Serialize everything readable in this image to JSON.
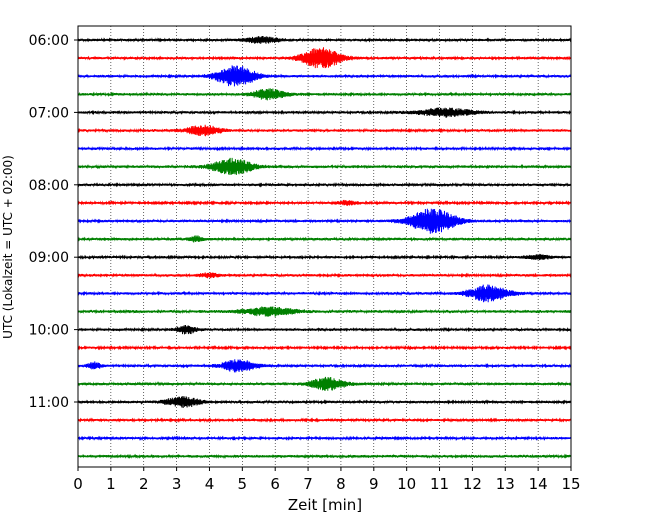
{
  "chart_data": {
    "type": "line",
    "xlabel": "Zeit  [min]",
    "ylabel": "UTC (Lokalzeit = UTC + 02:00)",
    "xlim": [
      0,
      15
    ],
    "x_ticks": [
      0,
      1,
      2,
      3,
      4,
      5,
      6,
      7,
      8,
      9,
      10,
      11,
      12,
      13,
      14,
      15
    ],
    "y_tick_labels": [
      "06:00",
      "07:00",
      "08:00",
      "09:00",
      "10:00",
      "11:00"
    ],
    "grid": "vertical dotted lines at every minute",
    "traces_per_hour": 4,
    "trace_colors": [
      "#000000",
      "#ff0000",
      "#0000ff",
      "#008000"
    ],
    "series": [
      {
        "start": "06:00",
        "color": "#000000",
        "noise": 1.5,
        "events": [
          {
            "t": 5.6,
            "amp": 3,
            "w": 0.5
          }
        ]
      },
      {
        "start": "06:15",
        "color": "#ff0000",
        "noise": 1.5,
        "events": [
          {
            "t": 7.4,
            "amp": 10,
            "w": 0.6
          }
        ]
      },
      {
        "start": "06:30",
        "color": "#0000ff",
        "noise": 1.5,
        "events": [
          {
            "t": 4.8,
            "amp": 10,
            "w": 0.6
          }
        ]
      },
      {
        "start": "06:45",
        "color": "#008000",
        "noise": 1.5,
        "events": [
          {
            "t": 5.8,
            "amp": 5,
            "w": 0.5
          }
        ]
      },
      {
        "start": "07:00",
        "color": "#000000",
        "noise": 1.5,
        "events": [
          {
            "t": 11.2,
            "amp": 4,
            "w": 0.8
          }
        ]
      },
      {
        "start": "07:15",
        "color": "#ff0000",
        "noise": 1.5,
        "events": [
          {
            "t": 3.8,
            "amp": 5,
            "w": 0.5
          }
        ]
      },
      {
        "start": "07:30",
        "color": "#0000ff",
        "noise": 1.4,
        "events": []
      },
      {
        "start": "07:45",
        "color": "#008000",
        "noise": 1.6,
        "events": [
          {
            "t": 4.7,
            "amp": 8,
            "w": 0.6
          }
        ]
      },
      {
        "start": "08:00",
        "color": "#000000",
        "noise": 1.5,
        "events": []
      },
      {
        "start": "08:15",
        "color": "#ff0000",
        "noise": 1.3,
        "events": [
          {
            "t": 8.2,
            "amp": 2,
            "w": 0.3
          }
        ]
      },
      {
        "start": "08:30",
        "color": "#0000ff",
        "noise": 1.5,
        "events": [
          {
            "t": 10.8,
            "amp": 12,
            "w": 0.7
          }
        ]
      },
      {
        "start": "08:45",
        "color": "#008000",
        "noise": 1.6,
        "events": [
          {
            "t": 3.6,
            "amp": 2.5,
            "w": 0.2
          }
        ]
      },
      {
        "start": "09:00",
        "color": "#000000",
        "noise": 1.4,
        "events": [
          {
            "t": 14.0,
            "amp": 2,
            "w": 0.4
          }
        ]
      },
      {
        "start": "09:15",
        "color": "#ff0000",
        "noise": 1.5,
        "events": [
          {
            "t": 4.0,
            "amp": 2,
            "w": 0.3
          }
        ]
      },
      {
        "start": "09:30",
        "color": "#0000ff",
        "noise": 1.5,
        "events": [
          {
            "t": 12.5,
            "amp": 8,
            "w": 0.6
          }
        ]
      },
      {
        "start": "09:45",
        "color": "#008000",
        "noise": 1.6,
        "events": [
          {
            "t": 5.8,
            "amp": 4,
            "w": 0.8
          }
        ]
      },
      {
        "start": "10:00",
        "color": "#000000",
        "noise": 1.5,
        "events": [
          {
            "t": 3.3,
            "amp": 4,
            "w": 0.3
          }
        ]
      },
      {
        "start": "10:15",
        "color": "#ff0000",
        "noise": 1.3,
        "events": []
      },
      {
        "start": "10:30",
        "color": "#0000ff",
        "noise": 1.5,
        "events": [
          {
            "t": 4.9,
            "amp": 6,
            "w": 0.5
          },
          {
            "t": 0.5,
            "amp": 3,
            "w": 0.2
          }
        ]
      },
      {
        "start": "10:45",
        "color": "#008000",
        "noise": 1.6,
        "events": [
          {
            "t": 7.6,
            "amp": 6,
            "w": 0.5
          }
        ]
      },
      {
        "start": "11:00",
        "color": "#000000",
        "noise": 1.5,
        "events": [
          {
            "t": 3.2,
            "amp": 5,
            "w": 0.5
          }
        ]
      },
      {
        "start": "11:15",
        "color": "#ff0000",
        "noise": 1.4,
        "events": []
      },
      {
        "start": "11:30",
        "color": "#0000ff",
        "noise": 1.4,
        "events": []
      },
      {
        "start": "11:45",
        "color": "#008000",
        "noise": 1.6,
        "events": []
      }
    ]
  }
}
